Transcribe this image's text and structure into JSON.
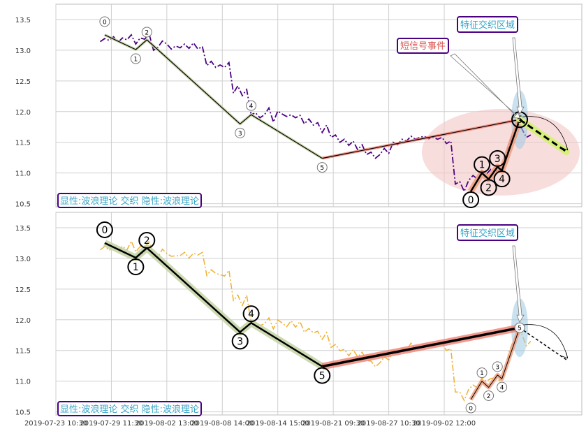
{
  "chart_data": [
    {
      "type": "line",
      "panel": "top",
      "ylim": [
        10.45,
        13.75
      ],
      "yticks": [
        "10.5",
        "11.0",
        "11.5",
        "12.0",
        "12.5",
        "13.0",
        "13.5"
      ],
      "grid": true,
      "price_color": "#4b0082",
      "price": [
        [
          0,
          13.14
        ],
        [
          2,
          13.19
        ],
        [
          4,
          13.16
        ],
        [
          6,
          13.22
        ],
        [
          8,
          13.13
        ],
        [
          10,
          13.2
        ],
        [
          12,
          13.17
        ],
        [
          14,
          13.25
        ],
        [
          16,
          13.1
        ],
        [
          18,
          13.2
        ],
        [
          20,
          13.18
        ],
        [
          22,
          13.27
        ],
        [
          24,
          13.0
        ],
        [
          26,
          13.05
        ],
        [
          28,
          13.15
        ],
        [
          30,
          13.1
        ],
        [
          32,
          13.02
        ],
        [
          34,
          13.07
        ],
        [
          36,
          13.04
        ],
        [
          38,
          13.1
        ],
        [
          40,
          13.03
        ],
        [
          42,
          13.12
        ],
        [
          44,
          13.02
        ],
        [
          46,
          13.06
        ],
        [
          48,
          12.75
        ],
        [
          50,
          12.82
        ],
        [
          52,
          12.72
        ],
        [
          54,
          12.76
        ],
        [
          56,
          12.72
        ],
        [
          58,
          12.8
        ],
        [
          60,
          12.3
        ],
        [
          62,
          12.42
        ],
        [
          64,
          12.26
        ],
        [
          66,
          12.36
        ],
        [
          68,
          11.95
        ],
        [
          70,
          11.98
        ],
        [
          72,
          11.9
        ],
        [
          74,
          11.95
        ],
        [
          76,
          12.06
        ],
        [
          78,
          11.83
        ],
        [
          80,
          12.01
        ],
        [
          82,
          11.96
        ],
        [
          84,
          11.92
        ],
        [
          86,
          11.95
        ],
        [
          88,
          11.9
        ],
        [
          90,
          11.94
        ],
        [
          92,
          11.8
        ],
        [
          94,
          11.88
        ],
        [
          96,
          11.78
        ],
        [
          98,
          11.82
        ],
        [
          100,
          11.66
        ],
        [
          102,
          11.78
        ],
        [
          104,
          11.58
        ],
        [
          106,
          11.62
        ],
        [
          108,
          11.5
        ],
        [
          110,
          11.55
        ],
        [
          112,
          11.45
        ],
        [
          114,
          11.52
        ],
        [
          116,
          11.38
        ],
        [
          118,
          11.46
        ],
        [
          120,
          11.3
        ],
        [
          122,
          11.34
        ],
        [
          124,
          11.24
        ],
        [
          126,
          11.3
        ],
        [
          128,
          11.4
        ],
        [
          130,
          11.32
        ],
        [
          132,
          11.5
        ],
        [
          134,
          11.46
        ],
        [
          136,
          11.55
        ],
        [
          138,
          11.52
        ],
        [
          140,
          11.6
        ],
        [
          142,
          11.55
        ],
        [
          144,
          11.58
        ],
        [
          146,
          11.6
        ],
        [
          148,
          11.56
        ],
        [
          150,
          11.58
        ],
        [
          152,
          11.55
        ],
        [
          154,
          11.58
        ],
        [
          156,
          11.48
        ],
        [
          158,
          11.52
        ],
        [
          160,
          10.82
        ],
        [
          162,
          10.86
        ],
        [
          164,
          10.7
        ],
        [
          166,
          10.88
        ],
        [
          168,
          10.96
        ],
        [
          170,
          10.9
        ],
        [
          172,
          11.04
        ],
        [
          174,
          10.98
        ],
        [
          176,
          11.06
        ],
        [
          178,
          11.02
        ],
        [
          180,
          11.05
        ],
        [
          182,
          11.1
        ],
        [
          184,
          11.45
        ],
        [
          186,
          11.65
        ],
        [
          188,
          11.8
        ],
        [
          190,
          11.72
        ],
        [
          192,
          11.58
        ],
        [
          194,
          11.62
        ]
      ],
      "main_wave": {
        "x": [
          2,
          16,
          21,
          63,
          68,
          100
        ],
        "y": [
          13.25,
          13.01,
          13.17,
          11.8,
          11.95,
          11.24
        ],
        "labels": [
          "0",
          "1",
          "2",
          "3",
          "4",
          "5"
        ]
      },
      "connector": {
        "x": [
          100,
          189
        ],
        "y": [
          11.24,
          11.87
        ]
      },
      "sub_wave": {
        "x": [
          167,
          172,
          175,
          179,
          181,
          189
        ],
        "y": [
          10.7,
          11.0,
          10.9,
          11.1,
          11.04,
          11.87
        ],
        "labels": [
          "0",
          "1",
          "2",
          "3",
          "4",
          "5"
        ]
      },
      "forecast": {
        "x": [
          189,
          210
        ],
        "y": [
          11.87,
          11.35
        ]
      },
      "annotations": {
        "feature": "特征交织区域",
        "event": "短信号事件"
      },
      "legend": "显性:波浪理论 交织 隐性:波浪理论"
    },
    {
      "type": "line",
      "panel": "bottom",
      "ylim": [
        10.45,
        13.75
      ],
      "yticks": [
        "10.5",
        "11.0",
        "11.5",
        "12.0",
        "12.5",
        "13.0",
        "13.5"
      ],
      "grid": true,
      "price_color": "#f0b030",
      "main_wave": {
        "x": [
          2,
          16,
          21,
          63,
          68,
          100
        ],
        "y": [
          13.25,
          13.01,
          13.17,
          11.8,
          11.95,
          11.24
        ],
        "labels": [
          "0",
          "1",
          "2",
          "3",
          "4",
          "5"
        ]
      },
      "connector": {
        "x": [
          100,
          189
        ],
        "y": [
          11.24,
          11.87
        ]
      },
      "sub_wave": {
        "x": [
          167,
          172,
          175,
          179,
          181,
          189
        ],
        "y": [
          10.7,
          11.0,
          10.9,
          11.1,
          11.04,
          11.87
        ],
        "labels": [
          "0",
          "1",
          "2",
          "3",
          "4",
          "5"
        ]
      },
      "forecast": {
        "x": [
          189,
          210
        ],
        "y": [
          11.87,
          11.35
        ]
      },
      "annotations": {
        "feature": "特征交织区域"
      },
      "legend": "显性:波浪理论 交织 隐性:波浪理论"
    }
  ],
  "x_axis": {
    "xlim": [
      -20,
      217
    ],
    "ticks": [
      {
        "x": -20,
        "label": "2019-07-23 10:30"
      },
      {
        "x": 5,
        "label": "2019-07-29 11:30"
      },
      {
        "x": 30,
        "label": "2019-08-02 13:00"
      },
      {
        "x": 55,
        "label": "2019-08-08 14:00"
      },
      {
        "x": 80,
        "label": "2019-08-14 15:00"
      },
      {
        "x": 105,
        "label": "2019-08-21 09:30"
      },
      {
        "x": 130,
        "label": "2019-08-27 10:30"
      },
      {
        "x": 155,
        "label": "2019-09-02 12:00"
      }
    ]
  },
  "colors": {
    "grid": "#cfcfcf",
    "axes_border": "#bdbdbd",
    "main_line": "#000000",
    "main_halo": "#c8d5a8",
    "connector_halo": "#f08070",
    "sub_halo": "#f0a080",
    "forecast": "#000000",
    "forecast_halo": "#d6f07a",
    "ellipse_fill": "#f4c7c7",
    "feature_fill": "#9ecae1",
    "annotation_feature_text": "#3aa6c8",
    "annotation_event_text": "#d9534f",
    "annotation_box_border": "#4b0082",
    "legend_text": "#3aa6c8"
  }
}
